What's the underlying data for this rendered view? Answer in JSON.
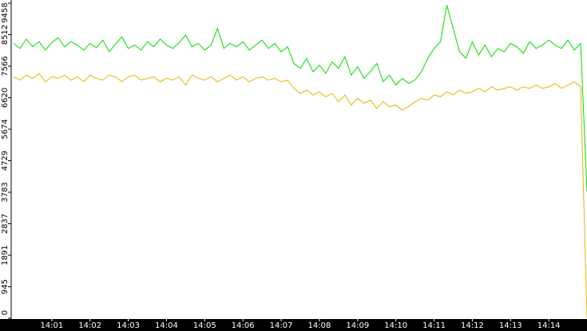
{
  "chart_data": {
    "type": "line",
    "x": [
      "14:00:00",
      "14:00:10",
      "14:00:20",
      "14:00:30",
      "14:00:40",
      "14:00:50",
      "14:01:00",
      "14:01:10",
      "14:01:20",
      "14:01:30",
      "14:01:40",
      "14:01:50",
      "14:02:00",
      "14:02:10",
      "14:02:20",
      "14:02:30",
      "14:02:40",
      "14:02:50",
      "14:03:00",
      "14:03:10",
      "14:03:20",
      "14:03:30",
      "14:03:40",
      "14:03:50",
      "14:04:00",
      "14:04:10",
      "14:04:20",
      "14:04:30",
      "14:04:40",
      "14:04:50",
      "14:05:00",
      "14:05:10",
      "14:05:20",
      "14:05:30",
      "14:05:40",
      "14:05:50",
      "14:06:00",
      "14:06:10",
      "14:06:20",
      "14:06:30",
      "14:06:40",
      "14:06:50",
      "14:07:00",
      "14:07:10",
      "14:07:20",
      "14:07:30",
      "14:07:40",
      "14:07:50",
      "14:08:00",
      "14:08:10",
      "14:08:20",
      "14:08:30",
      "14:08:40",
      "14:08:50",
      "14:09:00",
      "14:09:10",
      "14:09:20",
      "14:09:30",
      "14:09:40",
      "14:09:50",
      "14:10:00",
      "14:10:10",
      "14:10:20",
      "14:10:30",
      "14:10:40",
      "14:10:50",
      "14:11:00",
      "14:11:10",
      "14:11:20",
      "14:11:30",
      "14:11:40",
      "14:11:50",
      "14:12:00",
      "14:12:10",
      "14:12:20",
      "14:12:30",
      "14:12:40",
      "14:12:50",
      "14:13:00",
      "14:13:10",
      "14:13:20",
      "14:13:30",
      "14:13:40",
      "14:13:50",
      "14:14:00",
      "14:14:10",
      "14:14:20",
      "14:14:30",
      "14:14:40",
      "14:14:50",
      "14:15:00"
    ],
    "series": [
      {
        "color": "#00dd00",
        "values": [
          8250,
          8100,
          8380,
          8150,
          8300,
          8050,
          8280,
          8420,
          8150,
          8300,
          8200,
          8050,
          8250,
          8120,
          8350,
          8000,
          8230,
          8450,
          8100,
          8200,
          8050,
          8300,
          8150,
          8380,
          8200,
          8100,
          8280,
          8500,
          8150,
          8250,
          8050,
          8200,
          8700,
          8100,
          8250,
          8150,
          8300,
          8050,
          8200,
          8350,
          8100,
          8250,
          8000,
          8150,
          7650,
          7500,
          7800,
          7400,
          7600,
          7350,
          7700,
          7500,
          7850,
          7300,
          7550,
          7200,
          7400,
          7650,
          7100,
          7300,
          7000,
          7200,
          7050,
          7150,
          7400,
          7800,
          8100,
          8300,
          9400,
          8700,
          8000,
          7800,
          8300,
          7900,
          8200,
          7850,
          8100,
          8000,
          8250,
          8150,
          7950,
          8300,
          8100,
          8200,
          8350,
          8200,
          8100,
          8350,
          8050,
          8250,
          3800
        ]
      },
      {
        "color": "#e8b400",
        "values": [
          7250,
          7150,
          7300,
          7200,
          7350,
          7100,
          7250,
          7200,
          7300,
          7150,
          7250,
          7100,
          7300,
          7200,
          7150,
          7300,
          7250,
          7100,
          7250,
          7300,
          7150,
          7200,
          7250,
          7100,
          7200,
          7150,
          7250,
          7000,
          7300,
          7200,
          7150,
          7250,
          7100,
          7200,
          7300,
          7150,
          7250,
          7100,
          7200,
          7250,
          7150,
          7200,
          7100,
          7150,
          6900,
          6750,
          6850,
          6700,
          6800,
          6650,
          6750,
          6500,
          6700,
          6400,
          6600,
          6450,
          6550,
          6300,
          6500,
          6350,
          6400,
          6250,
          6350,
          6500,
          6600,
          6550,
          6700,
          6650,
          6800,
          6700,
          6850,
          6750,
          6800,
          6900,
          6800,
          6950,
          6850,
          6900,
          6950,
          6850,
          6950,
          6900,
          7000,
          6900,
          6950,
          7050,
          6900,
          7000,
          7100,
          6950,
          0
        ]
      }
    ],
    "xlim": [
      "14:00:00",
      "14:15:00"
    ],
    "xticks": [
      "14:01",
      "14:02",
      "14:03",
      "14:04",
      "14:05",
      "14:06",
      "14:07",
      "14:08",
      "14:09",
      "14:10",
      "14:11",
      "14:12",
      "14:13",
      "14:14"
    ],
    "ylim": [
      0,
      9458
    ],
    "yticks": [
      0,
      945,
      1891,
      2837,
      3783,
      4729,
      5674,
      6620,
      7566,
      8512,
      9458
    ]
  }
}
